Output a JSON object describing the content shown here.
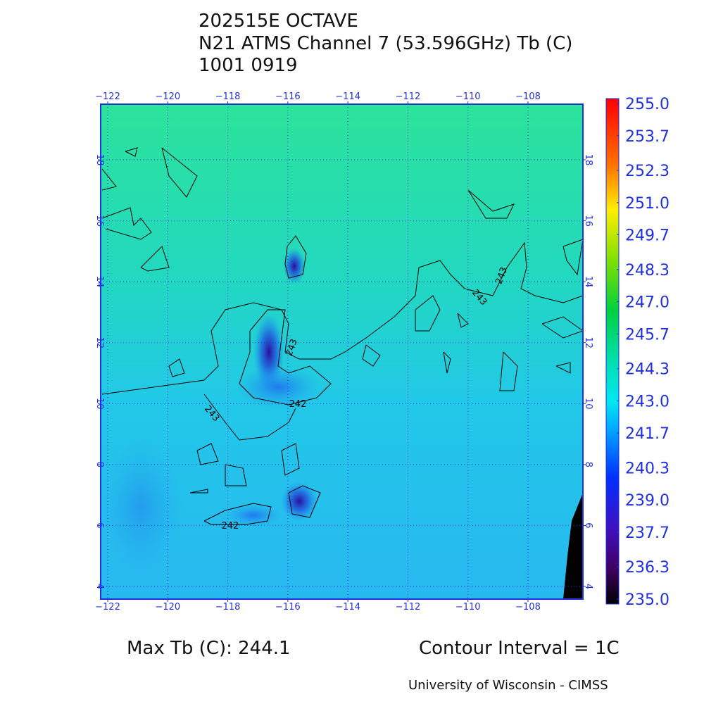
{
  "title": [
    "202515E OCTAVE",
    "N21 ATMS Channel 7 (53.596GHz) Tb (C)",
    "1001 0919"
  ],
  "lon_ticks": [
    {
      "value": -122,
      "label": "−122"
    },
    {
      "value": -120,
      "label": "−120"
    },
    {
      "value": -118,
      "label": "−118"
    },
    {
      "value": -116,
      "label": "−116"
    },
    {
      "value": -114,
      "label": "−114"
    },
    {
      "value": -112,
      "label": "−112"
    },
    {
      "value": -110,
      "label": "−110"
    },
    {
      "value": -108,
      "label": "−108"
    }
  ],
  "lat_ticks": [
    4,
    6,
    8,
    10,
    12,
    14,
    16,
    18
  ],
  "colorbar": [
    {
      "value": 255,
      "label": "255.0"
    },
    {
      "value": 253.7,
      "label": "253.7"
    },
    {
      "value": 252.3,
      "label": "252.3"
    },
    {
      "value": 251,
      "label": "251.0"
    },
    {
      "value": 249.7,
      "label": "249.7"
    },
    {
      "value": 248.3,
      "label": "248.3"
    },
    {
      "value": 247,
      "label": "247.0"
    },
    {
      "value": 245.7,
      "label": "245.7"
    },
    {
      "value": 244.3,
      "label": "244.3"
    },
    {
      "value": 243,
      "label": "243.0"
    },
    {
      "value": 241.7,
      "label": "241.7"
    },
    {
      "value": 240.3,
      "label": "240.3"
    },
    {
      "value": 239,
      "label": "239.0"
    },
    {
      "value": 237.7,
      "label": "237.7"
    },
    {
      "value": 236.3,
      "label": "236.3"
    },
    {
      "value": 235,
      "label": "235.0"
    }
  ],
  "contour_labels": [
    "243",
    "243",
    "243",
    "243",
    "242",
    "242"
  ],
  "max_tb": "Max Tb (C): 244.1",
  "contour_interval": "Contour Interval = 1C",
  "credit": "University of Wisconsin - CIMSS"
}
